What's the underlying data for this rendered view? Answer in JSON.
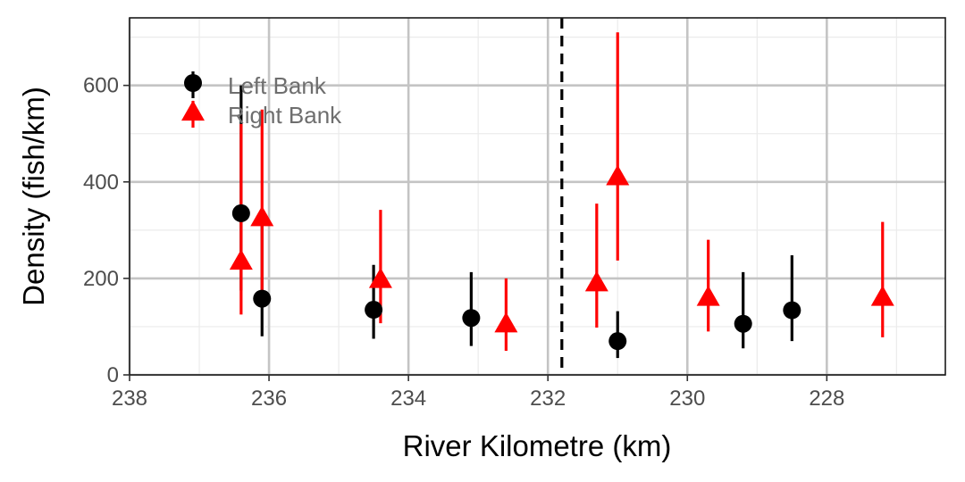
{
  "chart_data": {
    "type": "scatter",
    "title": "",
    "xlabel": "River Kilometre (km)",
    "ylabel": "Density (fish/km)",
    "x_reversed": true,
    "xlim": [
      238,
      226.3
    ],
    "ylim": [
      0,
      740
    ],
    "x_ticks": [
      238,
      236,
      234,
      232,
      230,
      228
    ],
    "y_ticks": [
      0,
      200,
      400,
      600
    ],
    "grid": true,
    "legend_position": "top-left",
    "reference_line_x": 231.8,
    "series": [
      {
        "name": "Left Bank",
        "marker": "circle",
        "color": "#000000",
        "points": [
          {
            "x": 236.4,
            "y": 335,
            "low": 175,
            "high": 600
          },
          {
            "x": 236.1,
            "y": 158,
            "low": 80,
            "high": 330
          },
          {
            "x": 234.5,
            "y": 135,
            "low": 75,
            "high": 228
          },
          {
            "x": 233.1,
            "y": 118,
            "low": 60,
            "high": 213
          },
          {
            "x": 231.0,
            "y": 70,
            "low": 35,
            "high": 132
          },
          {
            "x": 229.2,
            "y": 106,
            "low": 55,
            "high": 213
          },
          {
            "x": 228.5,
            "y": 134,
            "low": 70,
            "high": 248
          }
        ]
      },
      {
        "name": "Right Bank",
        "marker": "triangle",
        "color": "#ff0000",
        "points": [
          {
            "x": 236.4,
            "y": 235,
            "low": 125,
            "high": 520
          },
          {
            "x": 236.1,
            "y": 325,
            "low": 150,
            "high": 550
          },
          {
            "x": 234.4,
            "y": 197,
            "low": 107,
            "high": 342
          },
          {
            "x": 232.6,
            "y": 105,
            "low": 50,
            "high": 200
          },
          {
            "x": 231.3,
            "y": 190,
            "low": 98,
            "high": 355
          },
          {
            "x": 231.0,
            "y": 410,
            "low": 237,
            "high": 710
          },
          {
            "x": 229.7,
            "y": 160,
            "low": 90,
            "high": 280
          },
          {
            "x": 227.2,
            "y": 160,
            "low": 78,
            "high": 317
          }
        ]
      }
    ]
  }
}
